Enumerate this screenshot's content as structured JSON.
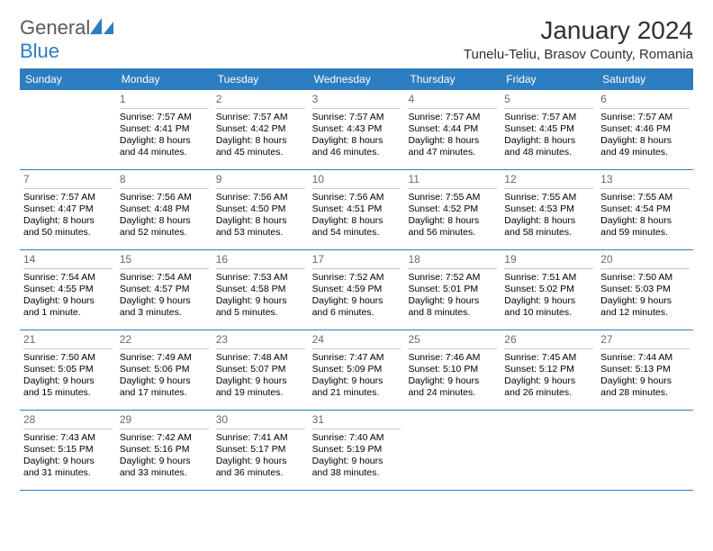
{
  "brand": {
    "name_part1": "General",
    "name_part2": "Blue",
    "logo_color": "#2d7dc1",
    "text_color_gray": "#5a5a5a"
  },
  "header": {
    "month_title": "January 2024",
    "location": "Tunelu-Teliu, Brasov County, Romania",
    "title_fontsize": 28,
    "location_fontsize": 15
  },
  "colors": {
    "header_bg": "#2d7dc1",
    "header_text": "#ffffff",
    "row_divider": "#2d7dc1",
    "daynum_divider": "#c8c8c8",
    "daynum_color": "#6a6a6a",
    "body_text": "#000000",
    "background": "#ffffff"
  },
  "weekdays": [
    "Sunday",
    "Monday",
    "Tuesday",
    "Wednesday",
    "Thursday",
    "Friday",
    "Saturday"
  ],
  "weeks": [
    [
      {
        "num": "",
        "sunrise": "",
        "sunset": "",
        "daylight": ""
      },
      {
        "num": "1",
        "sunrise": "Sunrise: 7:57 AM",
        "sunset": "Sunset: 4:41 PM",
        "daylight": "Daylight: 8 hours and 44 minutes."
      },
      {
        "num": "2",
        "sunrise": "Sunrise: 7:57 AM",
        "sunset": "Sunset: 4:42 PM",
        "daylight": "Daylight: 8 hours and 45 minutes."
      },
      {
        "num": "3",
        "sunrise": "Sunrise: 7:57 AM",
        "sunset": "Sunset: 4:43 PM",
        "daylight": "Daylight: 8 hours and 46 minutes."
      },
      {
        "num": "4",
        "sunrise": "Sunrise: 7:57 AM",
        "sunset": "Sunset: 4:44 PM",
        "daylight": "Daylight: 8 hours and 47 minutes."
      },
      {
        "num": "5",
        "sunrise": "Sunrise: 7:57 AM",
        "sunset": "Sunset: 4:45 PM",
        "daylight": "Daylight: 8 hours and 48 minutes."
      },
      {
        "num": "6",
        "sunrise": "Sunrise: 7:57 AM",
        "sunset": "Sunset: 4:46 PM",
        "daylight": "Daylight: 8 hours and 49 minutes."
      }
    ],
    [
      {
        "num": "7",
        "sunrise": "Sunrise: 7:57 AM",
        "sunset": "Sunset: 4:47 PM",
        "daylight": "Daylight: 8 hours and 50 minutes."
      },
      {
        "num": "8",
        "sunrise": "Sunrise: 7:56 AM",
        "sunset": "Sunset: 4:48 PM",
        "daylight": "Daylight: 8 hours and 52 minutes."
      },
      {
        "num": "9",
        "sunrise": "Sunrise: 7:56 AM",
        "sunset": "Sunset: 4:50 PM",
        "daylight": "Daylight: 8 hours and 53 minutes."
      },
      {
        "num": "10",
        "sunrise": "Sunrise: 7:56 AM",
        "sunset": "Sunset: 4:51 PM",
        "daylight": "Daylight: 8 hours and 54 minutes."
      },
      {
        "num": "11",
        "sunrise": "Sunrise: 7:55 AM",
        "sunset": "Sunset: 4:52 PM",
        "daylight": "Daylight: 8 hours and 56 minutes."
      },
      {
        "num": "12",
        "sunrise": "Sunrise: 7:55 AM",
        "sunset": "Sunset: 4:53 PM",
        "daylight": "Daylight: 8 hours and 58 minutes."
      },
      {
        "num": "13",
        "sunrise": "Sunrise: 7:55 AM",
        "sunset": "Sunset: 4:54 PM",
        "daylight": "Daylight: 8 hours and 59 minutes."
      }
    ],
    [
      {
        "num": "14",
        "sunrise": "Sunrise: 7:54 AM",
        "sunset": "Sunset: 4:55 PM",
        "daylight": "Daylight: 9 hours and 1 minute."
      },
      {
        "num": "15",
        "sunrise": "Sunrise: 7:54 AM",
        "sunset": "Sunset: 4:57 PM",
        "daylight": "Daylight: 9 hours and 3 minutes."
      },
      {
        "num": "16",
        "sunrise": "Sunrise: 7:53 AM",
        "sunset": "Sunset: 4:58 PM",
        "daylight": "Daylight: 9 hours and 5 minutes."
      },
      {
        "num": "17",
        "sunrise": "Sunrise: 7:52 AM",
        "sunset": "Sunset: 4:59 PM",
        "daylight": "Daylight: 9 hours and 6 minutes."
      },
      {
        "num": "18",
        "sunrise": "Sunrise: 7:52 AM",
        "sunset": "Sunset: 5:01 PM",
        "daylight": "Daylight: 9 hours and 8 minutes."
      },
      {
        "num": "19",
        "sunrise": "Sunrise: 7:51 AM",
        "sunset": "Sunset: 5:02 PM",
        "daylight": "Daylight: 9 hours and 10 minutes."
      },
      {
        "num": "20",
        "sunrise": "Sunrise: 7:50 AM",
        "sunset": "Sunset: 5:03 PM",
        "daylight": "Daylight: 9 hours and 12 minutes."
      }
    ],
    [
      {
        "num": "21",
        "sunrise": "Sunrise: 7:50 AM",
        "sunset": "Sunset: 5:05 PM",
        "daylight": "Daylight: 9 hours and 15 minutes."
      },
      {
        "num": "22",
        "sunrise": "Sunrise: 7:49 AM",
        "sunset": "Sunset: 5:06 PM",
        "daylight": "Daylight: 9 hours and 17 minutes."
      },
      {
        "num": "23",
        "sunrise": "Sunrise: 7:48 AM",
        "sunset": "Sunset: 5:07 PM",
        "daylight": "Daylight: 9 hours and 19 minutes."
      },
      {
        "num": "24",
        "sunrise": "Sunrise: 7:47 AM",
        "sunset": "Sunset: 5:09 PM",
        "daylight": "Daylight: 9 hours and 21 minutes."
      },
      {
        "num": "25",
        "sunrise": "Sunrise: 7:46 AM",
        "sunset": "Sunset: 5:10 PM",
        "daylight": "Daylight: 9 hours and 24 minutes."
      },
      {
        "num": "26",
        "sunrise": "Sunrise: 7:45 AM",
        "sunset": "Sunset: 5:12 PM",
        "daylight": "Daylight: 9 hours and 26 minutes."
      },
      {
        "num": "27",
        "sunrise": "Sunrise: 7:44 AM",
        "sunset": "Sunset: 5:13 PM",
        "daylight": "Daylight: 9 hours and 28 minutes."
      }
    ],
    [
      {
        "num": "28",
        "sunrise": "Sunrise: 7:43 AM",
        "sunset": "Sunset: 5:15 PM",
        "daylight": "Daylight: 9 hours and 31 minutes."
      },
      {
        "num": "29",
        "sunrise": "Sunrise: 7:42 AM",
        "sunset": "Sunset: 5:16 PM",
        "daylight": "Daylight: 9 hours and 33 minutes."
      },
      {
        "num": "30",
        "sunrise": "Sunrise: 7:41 AM",
        "sunset": "Sunset: 5:17 PM",
        "daylight": "Daylight: 9 hours and 36 minutes."
      },
      {
        "num": "31",
        "sunrise": "Sunrise: 7:40 AM",
        "sunset": "Sunset: 5:19 PM",
        "daylight": "Daylight: 9 hours and 38 minutes."
      },
      {
        "num": "",
        "sunrise": "",
        "sunset": "",
        "daylight": ""
      },
      {
        "num": "",
        "sunrise": "",
        "sunset": "",
        "daylight": ""
      },
      {
        "num": "",
        "sunrise": "",
        "sunset": "",
        "daylight": ""
      }
    ]
  ]
}
